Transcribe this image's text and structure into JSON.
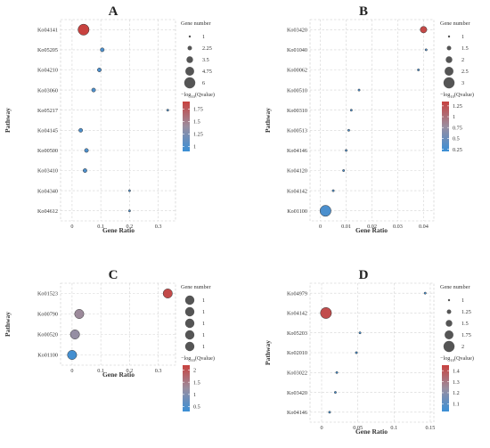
{
  "chart_data": [
    {
      "type": "scatter",
      "panel": "A",
      "xlabel": "Gene Ratio",
      "ylabel": "Pathway",
      "xlim": [
        -0.04,
        0.36
      ],
      "xticks": [
        0,
        0.1,
        0.2,
        0.3
      ],
      "xtick_labels": [
        "0",
        "0.1",
        "0.2",
        "0.3"
      ],
      "categories": [
        "Ko04141",
        "Ko05205",
        "Ko04210",
        "Ko03060",
        "Ko05217",
        "Ko04145",
        "Ko00500",
        "Ko03410",
        "Ko04340",
        "Ko04612"
      ],
      "gene_ratio": [
        0.04,
        0.105,
        0.095,
        0.075,
        0.333,
        0.03,
        0.05,
        0.045,
        0.2,
        0.2
      ],
      "gene_number": [
        6,
        2,
        2,
        2,
        1,
        2,
        2,
        2,
        1,
        1
      ],
      "neg_log10_qvalue": [
        1.9,
        1.0,
        1.0,
        1.0,
        1.0,
        1.0,
        1.0,
        1.0,
        1.0,
        1.0
      ],
      "size_legend": {
        "title": "Gene number",
        "labels": [
          "1",
          "2.25",
          "3.5",
          "4.75",
          "6"
        ],
        "values": [
          1,
          2.25,
          3.5,
          4.75,
          6
        ],
        "range": [
          1,
          6
        ]
      },
      "color_legend": {
        "title_prefix": "−log",
        "title_sub": "10",
        "title_suffix": "(Qvalue)",
        "tick_labels": [
          "1.75",
          "1.5",
          "1.25",
          "1"
        ],
        "tick_values": [
          1.75,
          1.5,
          1.25,
          1.0
        ],
        "range": [
          0.9,
          1.9
        ]
      }
    },
    {
      "type": "scatter",
      "panel": "B",
      "xlabel": "Gene Ratio",
      "ylabel": "Pathway",
      "xlim": [
        -0.004,
        0.044
      ],
      "xticks": [
        0,
        0.01,
        0.02,
        0.03,
        0.04
      ],
      "xtick_labels": [
        "0",
        "0.01",
        "0.02",
        "0.03",
        "0.04"
      ],
      "categories": [
        "Ko03420",
        "Ko01040",
        "Ko00062",
        "Ko00510",
        "Ko00310",
        "Ko00513",
        "Ko04146",
        "Ko04120",
        "Ko04142",
        "Ko01100"
      ],
      "gene_ratio": [
        0.04,
        0.041,
        0.038,
        0.015,
        0.012,
        0.011,
        0.01,
        0.009,
        0.005,
        0.002
      ],
      "gene_number": [
        2,
        1,
        1,
        1,
        1,
        1,
        1,
        1,
        1,
        3
      ],
      "neg_log10_qvalue": [
        1.3,
        0.3,
        0.3,
        0.3,
        0.3,
        0.3,
        0.3,
        0.3,
        0.3,
        0.3
      ],
      "size_legend": {
        "title": "Gene number",
        "labels": [
          "1",
          "1.5",
          "2",
          "2.5",
          "3"
        ],
        "values": [
          1,
          1.5,
          2,
          2.5,
          3
        ],
        "range": [
          1,
          3
        ]
      },
      "color_legend": {
        "title_prefix": "−log",
        "title_sub": "10",
        "title_suffix": "(Qvalue)",
        "tick_labels": [
          "1.25",
          "1",
          "0.75",
          "0.5",
          "0.25"
        ],
        "tick_values": [
          1.25,
          1.0,
          0.75,
          0.5,
          0.25
        ],
        "range": [
          0.2,
          1.35
        ]
      }
    },
    {
      "type": "scatter",
      "panel": "C",
      "xlabel": "Gene Ratio",
      "ylabel": "Pathway",
      "xlim": [
        -0.04,
        0.36
      ],
      "xticks": [
        0,
        0.1,
        0.2,
        0.3
      ],
      "xtick_labels": [
        "0",
        "0.1",
        "0.2",
        "0.3"
      ],
      "categories": [
        "Ko01523",
        "Ko00790",
        "Ko00520",
        "Ko01100"
      ],
      "gene_ratio": [
        0.333,
        0.025,
        0.01,
        0.0
      ],
      "gene_number": [
        1,
        1,
        1,
        1
      ],
      "neg_log10_qvalue": [
        2.1,
        1.3,
        1.2,
        0.4
      ],
      "size_legend": {
        "title": "Gene number",
        "labels": [
          "1",
          "1",
          "1",
          "1",
          "1"
        ],
        "values": [
          1,
          1,
          1,
          1,
          1
        ],
        "range": [
          1,
          1
        ]
      },
      "color_legend": {
        "title_prefix": "−log",
        "title_sub": "10",
        "title_suffix": "(Qvalue)",
        "tick_labels": [
          "2",
          "1.5",
          "1",
          "0.5"
        ],
        "tick_values": [
          2.0,
          1.5,
          1.0,
          0.5
        ],
        "range": [
          0.3,
          2.2
        ]
      }
    },
    {
      "type": "scatter",
      "panel": "D",
      "xlabel": "Gene Ratio",
      "ylabel": "Pathway",
      "xlim": [
        -0.016,
        0.155
      ],
      "xticks": [
        0,
        0.05,
        0.1,
        0.15
      ],
      "xtick_labels": [
        "0",
        "0.05",
        "0.1",
        "0.15"
      ],
      "categories": [
        "Ko04979",
        "Ko04142",
        "Ko05203",
        "Ko02010",
        "Ko03022",
        "Ko03420",
        "Ko04146"
      ],
      "gene_ratio": [
        0.143,
        0.006,
        0.053,
        0.048,
        0.021,
        0.019,
        0.011
      ],
      "gene_number": [
        1,
        2,
        1,
        1,
        1,
        1,
        1
      ],
      "neg_log10_qvalue": [
        1.05,
        1.42,
        1.05,
        1.05,
        1.05,
        1.05,
        1.05
      ],
      "size_legend": {
        "title": "Gene number",
        "labels": [
          "1",
          "1.25",
          "1.5",
          "1.75",
          "2"
        ],
        "values": [
          1,
          1.25,
          1.5,
          1.75,
          2
        ],
        "range": [
          1,
          2
        ]
      },
      "color_legend": {
        "title_prefix": "−log",
        "title_sub": "10",
        "title_suffix": "(Qvalue)",
        "tick_labels": [
          "1.4",
          "1.3",
          "1.2",
          "1.1"
        ],
        "tick_values": [
          1.4,
          1.3,
          1.2,
          1.1
        ],
        "range": [
          1.03,
          1.45
        ]
      }
    }
  ],
  "colors": {
    "high": "#c8423f",
    "mid": "#9a8ea0",
    "low": "#3a8fd6",
    "point_stroke": "#333333",
    "grid": "#d3d3d3",
    "legend_size_dot": "#555555"
  }
}
